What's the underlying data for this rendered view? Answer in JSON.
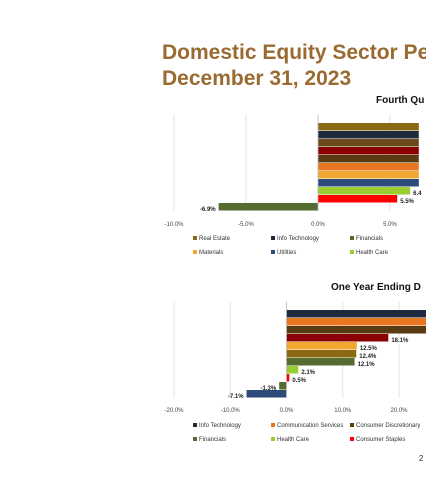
{
  "slide": {
    "title_line1": "Domestic Equity Sector Pe",
    "title_line2": "December 31, 2023",
    "page_number": "2"
  },
  "chart_data": [
    {
      "type": "bar",
      "orientation": "horizontal",
      "title": "Fourth Qu",
      "xlim": [
        -10,
        7
      ],
      "ticks": [
        "-10.0%",
        "-5.0%",
        "0.0%",
        "5.0%"
      ],
      "tick_values": [
        -10,
        -5,
        0,
        5
      ],
      "grid": true,
      "bars": [
        {
          "color": "#8b6914",
          "value": 7,
          "label": ""
        },
        {
          "color": "#1f2a3c",
          "value": 7,
          "label": ""
        },
        {
          "color": "#6b4a1a",
          "value": 7,
          "label": ""
        },
        {
          "color": "#8b0000",
          "value": 7,
          "label": ""
        },
        {
          "color": "#5a3a12",
          "value": 7,
          "label": ""
        },
        {
          "color": "#e87722",
          "value": 7,
          "label": ""
        },
        {
          "color": "#f0a830",
          "value": 7,
          "label": ""
        },
        {
          "color": "#2e4a7a",
          "value": 7,
          "label": ""
        },
        {
          "color": "#9acd32",
          "value": 6.4,
          "label": "6.4"
        },
        {
          "color": "#ff0000",
          "value": 5.5,
          "label": "5.5%"
        },
        {
          "color": "#556b2f",
          "value": -6.9,
          "label": "-6.9%"
        }
      ],
      "legend_position": "bottom",
      "legend": [
        {
          "name": "Real Estate",
          "color": "#8b6914"
        },
        {
          "name": "Info Technology",
          "color": "#1f2a3c"
        },
        {
          "name": "Financials",
          "color": "#556b2f"
        },
        {
          "name": "Materials",
          "color": "#f0a830"
        },
        {
          "name": "Utilities",
          "color": "#2e4a7a"
        },
        {
          "name": "Health Care",
          "color": "#9acd32"
        }
      ]
    },
    {
      "type": "bar",
      "orientation": "horizontal",
      "title": "One Year Ending D",
      "xlim": [
        -20,
        25
      ],
      "ticks": [
        "-20.0%",
        "-10.0%",
        "0.0%",
        "10.0%",
        "20.0%"
      ],
      "tick_values": [
        -20,
        -10,
        0,
        10,
        20
      ],
      "grid": true,
      "bars": [
        {
          "color": "#1f2a3c",
          "value": 25,
          "label": ""
        },
        {
          "color": "#e87722",
          "value": 25,
          "label": ""
        },
        {
          "color": "#5a3a12",
          "value": 25,
          "label": ""
        },
        {
          "color": "#8b0000",
          "value": 18.1,
          "label": "18.1%"
        },
        {
          "color": "#f0a830",
          "value": 12.5,
          "label": "12.5%"
        },
        {
          "color": "#8b6914",
          "value": 12.4,
          "label": "12.4%"
        },
        {
          "color": "#556b2f",
          "value": 12.1,
          "label": "12.1%"
        },
        {
          "color": "#9acd32",
          "value": 2.1,
          "label": "2.1%"
        },
        {
          "color": "#ff0000",
          "value": 0.5,
          "label": "0.5%"
        },
        {
          "color": "#556b2f",
          "value": -1.3,
          "label": "-1.3%"
        },
        {
          "color": "#2e4a7a",
          "value": -7.1,
          "label": "-7.1%"
        }
      ],
      "legend_position": "bottom",
      "legend": [
        {
          "name": "Info Technology",
          "color": "#1f2a3c"
        },
        {
          "name": "Communication Services",
          "color": "#e87722"
        },
        {
          "name": "Consumer Discretionary",
          "color": "#5a3a12"
        },
        {
          "name": "Financials",
          "color": "#556b2f"
        },
        {
          "name": "Health Care",
          "color": "#9acd32"
        },
        {
          "name": "Consumer Staples",
          "color": "#ff0000"
        }
      ]
    }
  ]
}
